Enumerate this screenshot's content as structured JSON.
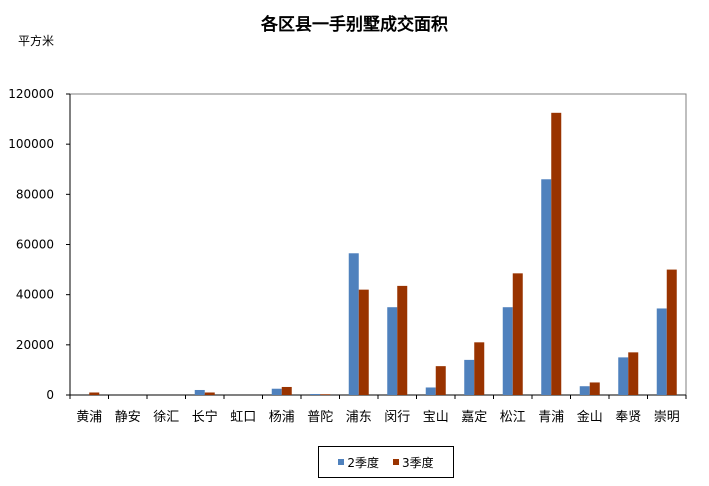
{
  "chart_data": {
    "type": "bar",
    "title": "各区县一手别墅成交面积",
    "ylabel": "平方米",
    "xlabel": "",
    "ylim": [
      0,
      120000
    ],
    "yticks": [
      0,
      20000,
      40000,
      60000,
      80000,
      100000,
      120000
    ],
    "grid": false,
    "legend_position": "bottom",
    "categories": [
      "黄浦",
      "静安",
      "徐汇",
      "长宁",
      "虹口",
      "杨浦",
      "普陀",
      "浦东",
      "闵行",
      "宝山",
      "嘉定",
      "松江",
      "青浦",
      "金山",
      "奉贤",
      "崇明"
    ],
    "series": [
      {
        "name": "2季度",
        "color": "#4f81bd",
        "values": [
          0,
          0,
          0,
          2000,
          0,
          2500,
          400,
          56500,
          35000,
          3000,
          14000,
          35000,
          86000,
          3500,
          15000,
          34500
        ]
      },
      {
        "name": "3季度",
        "color": "#993300",
        "values": [
          1000,
          0,
          0,
          1000,
          0,
          3200,
          300,
          42000,
          43500,
          11500,
          21000,
          48500,
          112500,
          5000,
          17000,
          50000
        ]
      }
    ]
  }
}
